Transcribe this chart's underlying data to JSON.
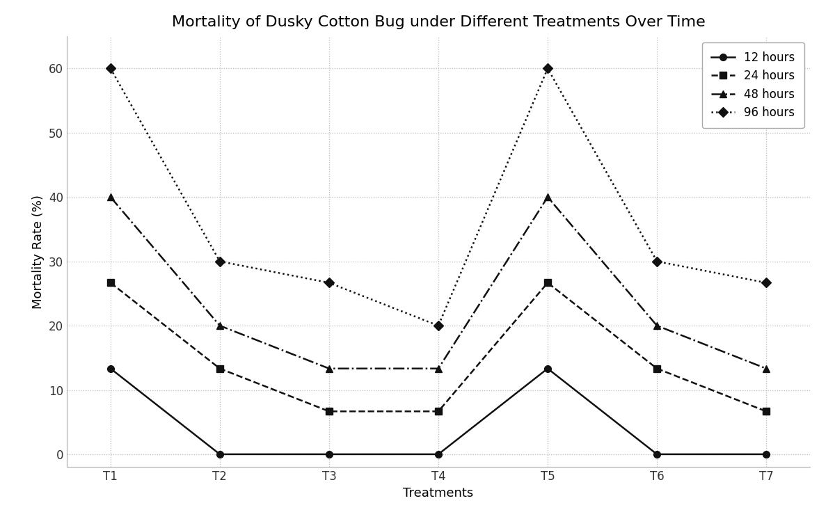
{
  "title": "Mortality of Dusky Cotton Bug under Different Treatments Over Time",
  "xlabel": "Treatments",
  "ylabel": "Mortality Rate (%)",
  "treatments": [
    "T1",
    "T2",
    "T3",
    "T4",
    "T5",
    "T6",
    "T7"
  ],
  "series": {
    "12 hours": {
      "values": [
        13.33,
        0,
        0,
        0,
        13.33,
        0,
        0
      ],
      "linestyle": "-",
      "marker": "o",
      "linewidth": 1.8,
      "markersize": 7
    },
    "24 hours": {
      "values": [
        26.67,
        13.33,
        6.67,
        6.67,
        26.67,
        13.33,
        6.67
      ],
      "linestyle": "--",
      "marker": "s",
      "linewidth": 1.8,
      "markersize": 7
    },
    "48 hours": {
      "values": [
        40.0,
        20.0,
        13.33,
        13.33,
        40.0,
        20.0,
        13.33
      ],
      "linestyle": "-.",
      "marker": "^",
      "linewidth": 1.8,
      "markersize": 7
    },
    "96 hours": {
      "values": [
        60.0,
        30.0,
        26.67,
        20.0,
        60.0,
        30.0,
        26.67
      ],
      "linestyle": ":",
      "marker": "D",
      "linewidth": 1.8,
      "markersize": 7
    }
  },
  "ylim": [
    -2,
    65
  ],
  "yticks": [
    0,
    10,
    20,
    30,
    40,
    50,
    60
  ],
  "color": "#111111",
  "background_color": "#ffffff",
  "grid_color": "#bbbbbb",
  "title_fontsize": 16,
  "label_fontsize": 13,
  "tick_fontsize": 12,
  "legend_fontsize": 12
}
